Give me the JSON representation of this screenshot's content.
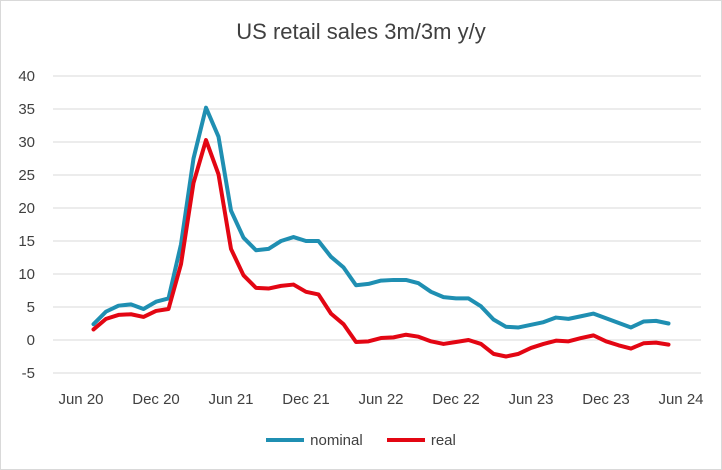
{
  "chart_data": {
    "type": "line",
    "title": "US retail sales 3m/3m y/y",
    "xlabel": "",
    "ylabel": "",
    "x_start": "Jun 20",
    "x_ticks": [
      "Jun 20",
      "Dec 20",
      "Jun 21",
      "Dec 21",
      "Jun 22",
      "Dec 22",
      "Jun 23",
      "Dec 23",
      "Jun 24"
    ],
    "ylim": [
      -5,
      40
    ],
    "y_ticks": [
      -5,
      0,
      5,
      10,
      15,
      20,
      25,
      30,
      35,
      40
    ],
    "legend_position": "bottom",
    "grid": true,
    "series": [
      {
        "name": "nominal",
        "color": "#1f8fb2",
        "values": [
          2.4,
          4.3,
          5.2,
          5.4,
          4.7,
          5.8,
          6.3,
          14.5,
          27.5,
          35.2,
          30.8,
          19.6,
          15.5,
          13.6,
          13.8,
          15.0,
          15.6,
          15.0,
          15.0,
          12.6,
          11.0,
          8.3,
          8.5,
          9.0,
          9.1,
          9.1,
          8.6,
          7.3,
          6.5,
          6.3,
          6.3,
          5.1,
          3.1,
          2.0,
          1.9,
          2.3,
          2.7,
          3.4,
          3.2,
          3.6,
          4.0,
          3.3,
          2.6,
          1.9,
          2.8,
          2.9,
          2.5
        ]
      },
      {
        "name": "real",
        "color": "#e30613",
        "values": [
          1.6,
          3.2,
          3.8,
          3.9,
          3.5,
          4.4,
          4.7,
          11.5,
          23.8,
          30.3,
          25.1,
          13.8,
          9.8,
          7.9,
          7.8,
          8.2,
          8.4,
          7.3,
          6.9,
          4.0,
          2.4,
          -0.3,
          -0.2,
          0.3,
          0.4,
          0.8,
          0.5,
          -0.2,
          -0.6,
          -0.3,
          0.0,
          -0.6,
          -2.1,
          -2.5,
          -2.1,
          -1.2,
          -0.6,
          -0.1,
          -0.2,
          0.3,
          0.7,
          -0.2,
          -0.8,
          -1.3,
          -0.5,
          -0.4,
          -0.7
        ]
      }
    ]
  }
}
